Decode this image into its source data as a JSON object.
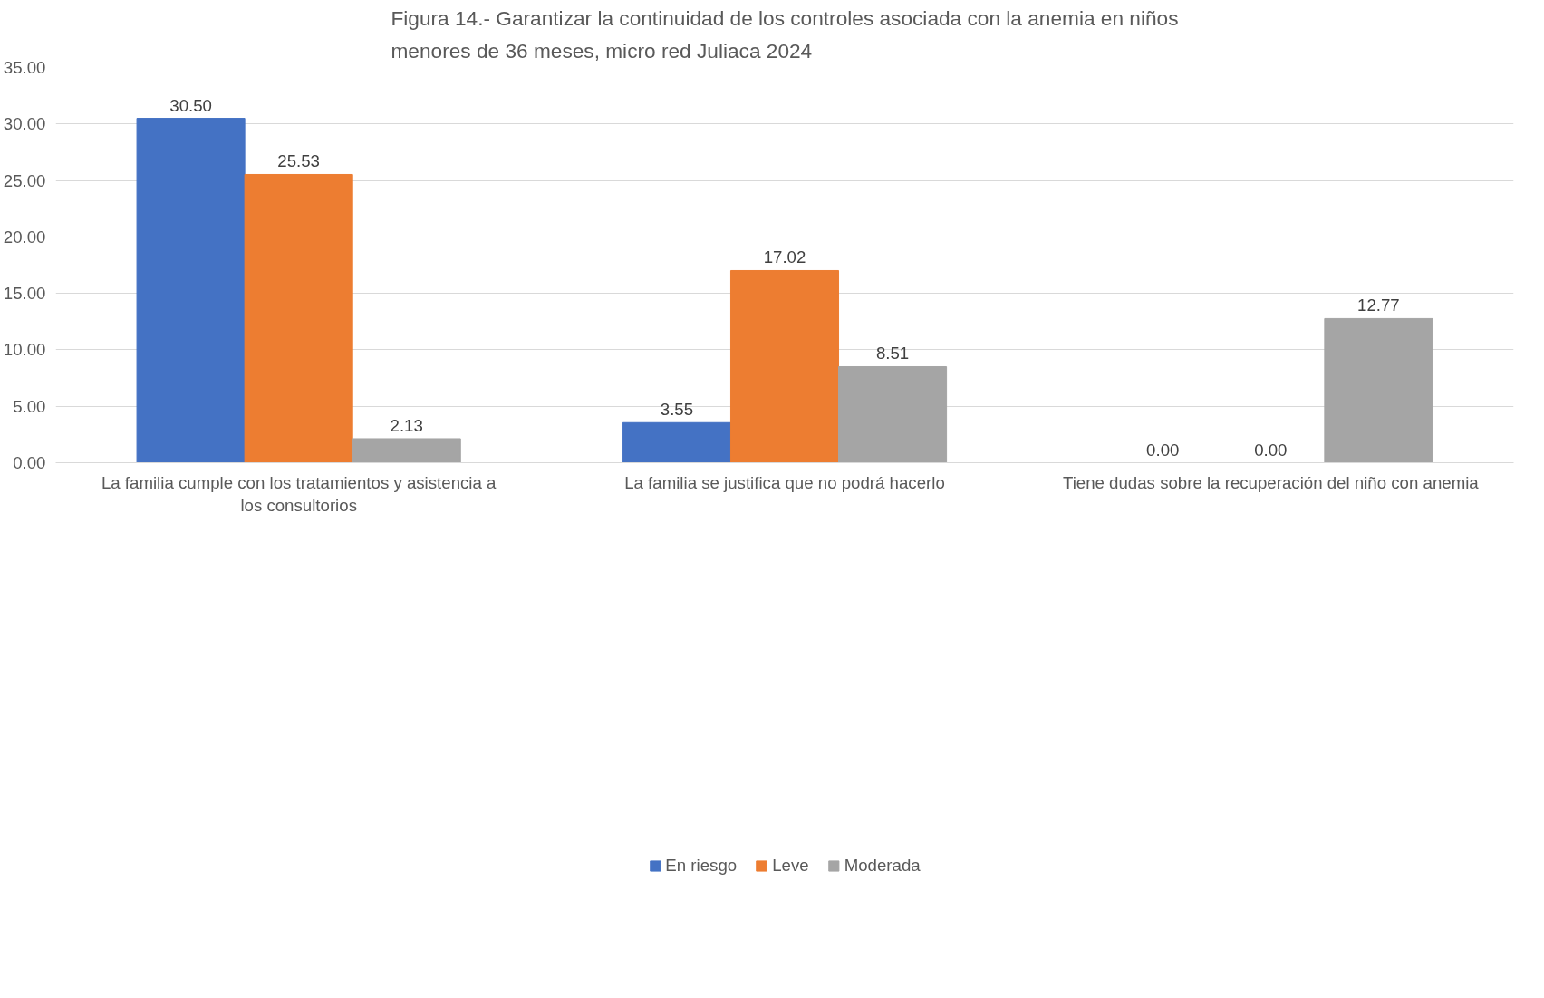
{
  "chart_data": {
    "type": "bar",
    "title": "Figura 14.- Garantizar la continuidad de los controles asociada con la anemia en niños\nmenores de 36 meses, micro red Juliaca 2024",
    "categories": [
      "La familia cumple con los tratamientos y asistencia a los consultorios",
      "La familia se justifica que no podrá hacerlo",
      "Tiene dudas sobre la recuperación del niño con anemia"
    ],
    "series": [
      {
        "name": "En riesgo",
        "color": "#4472c4",
        "values": [
          30.5,
          3.55,
          0.0
        ],
        "value_labels": [
          "30.50",
          "3.55",
          "0.00"
        ]
      },
      {
        "name": "Leve",
        "color": "#ed7d31",
        "values": [
          25.53,
          17.02,
          0.0
        ],
        "value_labels": [
          "25.53",
          "17.02",
          "0.00"
        ]
      },
      {
        "name": "Moderada",
        "color": "#a5a5a5",
        "values": [
          2.13,
          8.51,
          12.77
        ],
        "value_labels": [
          "2.13",
          "8.51",
          "12.77"
        ]
      }
    ],
    "ylim": [
      0,
      35
    ],
    "yticks": [
      {
        "value": 0,
        "label": "0.00"
      },
      {
        "value": 5,
        "label": "5.00"
      },
      {
        "value": 10,
        "label": "10.00"
      },
      {
        "value": 15,
        "label": "15.00"
      },
      {
        "value": 20,
        "label": "20.00"
      },
      {
        "value": 25,
        "label": "25.00"
      },
      {
        "value": 30,
        "label": "30.00"
      },
      {
        "value": 35,
        "label": "35.00"
      }
    ],
    "grid": "y",
    "legend": "bottom"
  }
}
